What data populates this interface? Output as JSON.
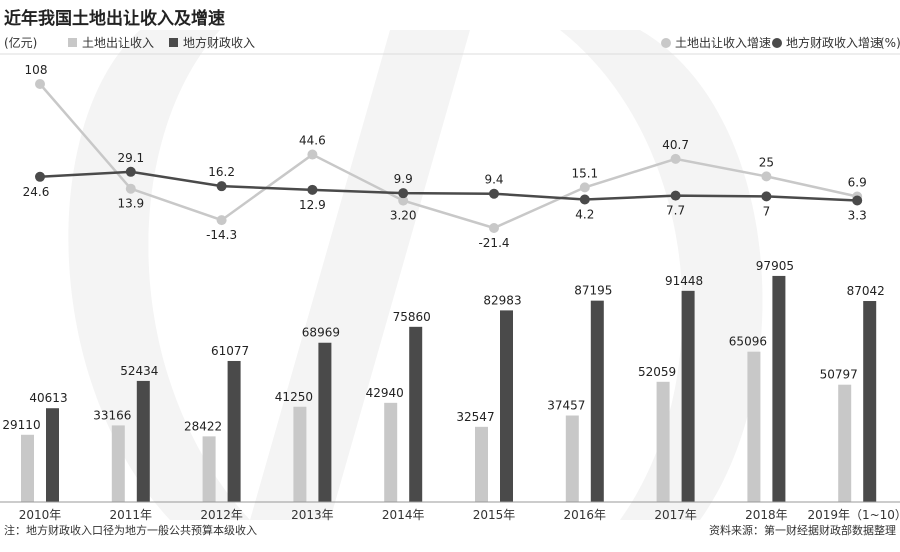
{
  "header": {
    "title": "近年我国土地出让收入及增速",
    "left_unit": "(亿元)",
    "right_unit": "(%)"
  },
  "legend": {
    "land_income": "土地出让收入",
    "fiscal_income": "地方财政收入",
    "land_growth": "土地出让收入增速",
    "fiscal_growth": "地方财政收入增速"
  },
  "footer": {
    "note": "注：地方财政收入口径为地方一般公共预算本级收入",
    "source": "资料来源：第一财经据财政部数据整理"
  },
  "colors": {
    "land": "#c8c8c8",
    "fiscal": "#4a4a4a",
    "land_line": "#c8c8c8",
    "fiscal_line": "#4a4a4a",
    "axis": "#999999",
    "background_mark": "#f3f3f3"
  },
  "chart_data": {
    "type": "bar",
    "categories": [
      "2010年",
      "2011年",
      "2012年",
      "2013年",
      "2014年",
      "2015年",
      "2016年",
      "2017年",
      "2018年",
      "2019年（1~10）"
    ],
    "series": [
      {
        "name": "土地出让收入",
        "values": [
          29110,
          33166,
          28422,
          41250,
          42940,
          32547,
          37457,
          52059,
          65096,
          50797
        ],
        "labels": [
          "29110",
          "33166",
          "28422",
          "41250",
          "42940",
          "32547",
          "37457",
          "52059",
          "65096",
          "50797"
        ]
      },
      {
        "name": "地方财政收入",
        "values": [
          40613,
          52434,
          61077,
          68969,
          75860,
          82983,
          87195,
          91448,
          97905,
          87042
        ],
        "labels": [
          "40613",
          "52434",
          "61077",
          "68969",
          "75860",
          "82983",
          "87195",
          "91448",
          "97905",
          "87042"
        ]
      }
    ],
    "lines": [
      {
        "name": "土地出让收入增速",
        "values": [
          108,
          13.9,
          -14.3,
          44.6,
          3.2,
          -21.4,
          15.1,
          40.7,
          25,
          6.9
        ],
        "labels": [
          "108",
          "13.9",
          "-14.3",
          "44.6",
          "3.20",
          "-21.4",
          "15.1",
          "40.7",
          "25",
          "6.9"
        ]
      },
      {
        "name": "地方财政收入增速",
        "values": [
          24.6,
          29.1,
          16.2,
          12.9,
          9.9,
          9.4,
          4.2,
          7.7,
          7,
          3.3
        ],
        "labels": [
          "24.6",
          "29.1",
          "16.2",
          "12.9",
          "9.9",
          "9.4",
          "4.2",
          "7.7",
          "7",
          "3.3"
        ]
      }
    ],
    "ylabel": "(亿元)",
    "ylabel_right": "(%)",
    "ylim": [
      0,
      110000
    ],
    "grid": false,
    "legend_position": "top"
  }
}
